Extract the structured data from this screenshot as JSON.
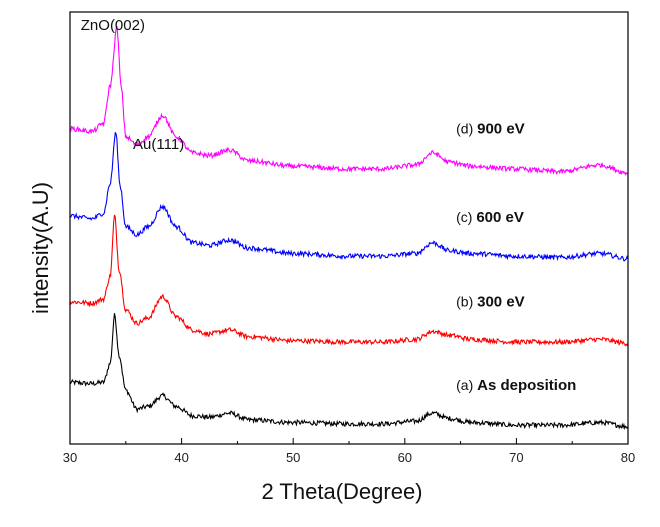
{
  "chart_data": {
    "type": "line",
    "title": "",
    "xlabel": "2 Theta(Degree)",
    "ylabel": "intensity(A.U)",
    "xlim": [
      30,
      80
    ],
    "xticks": [
      30,
      40,
      50,
      60,
      70,
      80
    ],
    "yticks_shown": false,
    "annotations": [
      {
        "text": "ZnO(002)",
        "x": 34.2
      },
      {
        "text": "Au(111)",
        "x": 38.3
      }
    ],
    "series": [
      {
        "id": "a",
        "prefix": "(a)",
        "name": "As deposition",
        "color": "#000000",
        "offset": 0,
        "x": [
          30,
          32,
          33,
          33.6,
          34.0,
          34.4,
          35,
          36,
          37,
          38.3,
          39.5,
          41,
          42.5,
          44.3,
          46,
          50,
          55,
          58,
          61,
          62.5,
          64,
          66,
          70,
          74,
          77.5,
          80
        ],
        "y": [
          0.36,
          0.35,
          0.36,
          0.5,
          0.86,
          0.56,
          0.3,
          0.16,
          0.18,
          0.26,
          0.18,
          0.11,
          0.1,
          0.13,
          0.08,
          0.06,
          0.05,
          0.05,
          0.07,
          0.13,
          0.09,
          0.06,
          0.04,
          0.04,
          0.06,
          0.03
        ]
      },
      {
        "id": "b",
        "prefix": "(b)",
        "name": "300 eV",
        "color": "#ff0000",
        "offset": 0.6,
        "x": [
          30,
          32,
          33,
          33.6,
          34.0,
          34.4,
          35,
          36,
          37,
          38.3,
          39.5,
          41,
          42.5,
          44.3,
          46,
          50,
          55,
          58,
          61,
          62.5,
          64,
          66,
          70,
          74,
          77.5,
          80
        ],
        "y": [
          0.36,
          0.35,
          0.38,
          0.55,
          1.0,
          0.6,
          0.3,
          0.2,
          0.24,
          0.4,
          0.25,
          0.15,
          0.12,
          0.15,
          0.1,
          0.07,
          0.06,
          0.06,
          0.08,
          0.14,
          0.11,
          0.08,
          0.06,
          0.06,
          0.08,
          0.05
        ]
      },
      {
        "id": "c",
        "prefix": "(c)",
        "name": "600 eV",
        "color": "#0000ff",
        "offset": 1.22,
        "x": [
          30,
          32,
          33,
          33.6,
          34.1,
          34.5,
          35,
          36,
          37,
          38.3,
          39.5,
          41,
          42.5,
          44.3,
          46,
          50,
          55,
          58,
          61,
          62.5,
          64,
          66,
          70,
          74,
          77.5,
          80
        ],
        "y": [
          0.38,
          0.36,
          0.4,
          0.62,
          1.0,
          0.6,
          0.3,
          0.24,
          0.3,
          0.45,
          0.3,
          0.18,
          0.16,
          0.2,
          0.14,
          0.1,
          0.08,
          0.08,
          0.1,
          0.18,
          0.12,
          0.1,
          0.08,
          0.07,
          0.1,
          0.06
        ]
      },
      {
        "id": "d",
        "prefix": "(d)",
        "name": "900 eV",
        "color": "#ff00ff",
        "offset": 1.85,
        "x": [
          30,
          32,
          33,
          33.6,
          34.2,
          34.6,
          35,
          36,
          37,
          38.3,
          39.5,
          41,
          42.5,
          44.3,
          46,
          50,
          55,
          58,
          61,
          62.5,
          64,
          66,
          70,
          74,
          77.5,
          80
        ],
        "y": [
          0.4,
          0.38,
          0.44,
          0.72,
          1.15,
          0.7,
          0.34,
          0.28,
          0.34,
          0.5,
          0.34,
          0.22,
          0.2,
          0.24,
          0.16,
          0.12,
          0.1,
          0.1,
          0.13,
          0.22,
          0.15,
          0.12,
          0.1,
          0.08,
          0.13,
          0.07
        ]
      }
    ]
  },
  "colors": {
    "axis": "#000000",
    "background": "#ffffff"
  }
}
